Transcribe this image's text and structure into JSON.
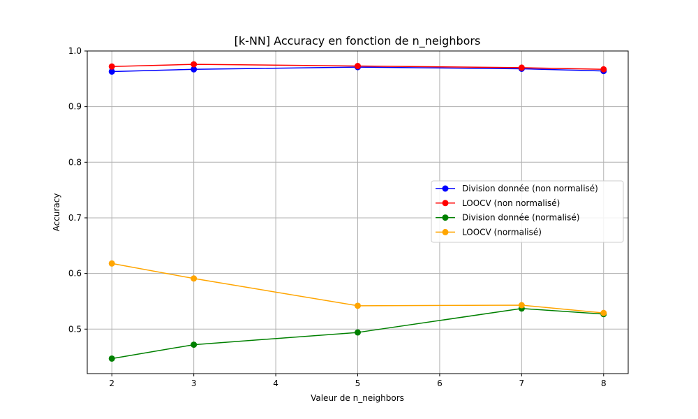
{
  "chart_data": {
    "type": "line",
    "title": "[k-NN] Accuracy en fonction de n_neighbors",
    "xlabel": "Valeur de n_neighbors",
    "ylabel": "Accuracy",
    "x": [
      2,
      3,
      5,
      7,
      8
    ],
    "xlim": [
      1.7,
      8.3
    ],
    "ylim": [
      0.42,
      1.0
    ],
    "xticks": [
      "2",
      "3",
      "4",
      "5",
      "6",
      "7",
      "8"
    ],
    "yticks": [
      "0.5",
      "0.6",
      "0.7",
      "0.8",
      "0.9",
      "1.0"
    ],
    "grid": true,
    "legend_position": "center-right",
    "series": [
      {
        "name": "Division donnée (non normalisé)",
        "color": "#0000ff",
        "values": [
          0.963,
          0.967,
          0.971,
          0.968,
          0.964
        ]
      },
      {
        "name": "LOOCV (non normalisé)",
        "color": "#ff0000",
        "values": [
          0.972,
          0.976,
          0.973,
          0.97,
          0.967
        ]
      },
      {
        "name": "Division donnée (normalisé)",
        "color": "#008000",
        "values": [
          0.447,
          0.472,
          0.494,
          0.537,
          0.527
        ]
      },
      {
        "name": "LOOCV (normalisé)",
        "color": "#ffa500",
        "values": [
          0.618,
          0.591,
          0.542,
          0.543,
          0.529
        ]
      }
    ]
  }
}
